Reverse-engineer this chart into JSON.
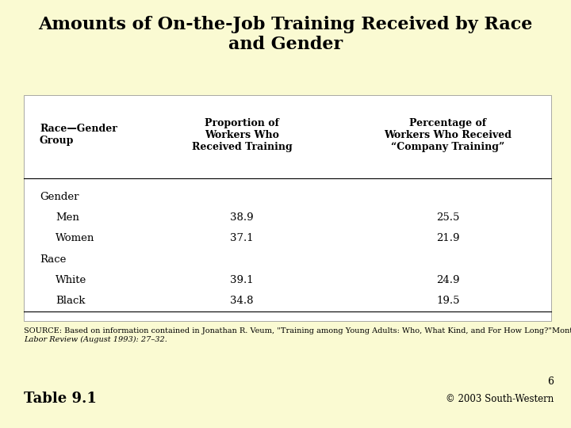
{
  "title": "Amounts of On-the-Job Training Received by Race\nand Gender",
  "background_color": "#FAFAD2",
  "table_bg": "#FFFFFF",
  "col_headers": [
    "Race—Gender\nGroup",
    "Proportion of\nWorkers Who\nReceived Training",
    "Percentage of\nWorkers Who Received\n“Company Training”"
  ],
  "rows": [
    {
      "label": "Gender",
      "indent": false,
      "col2": "",
      "col3": ""
    },
    {
      "label": "Men",
      "indent": true,
      "col2": "38.9",
      "col3": "25.5"
    },
    {
      "label": "Women",
      "indent": true,
      "col2": "37.1",
      "col3": "21.9"
    },
    {
      "label": "Race",
      "indent": false,
      "col2": "",
      "col3": ""
    },
    {
      "label": "White",
      "indent": true,
      "col2": "39.1",
      "col3": "24.9"
    },
    {
      "label": "Black",
      "indent": true,
      "col2": "34.8",
      "col3": "19.5"
    }
  ],
  "source_line1": "SOURCE: Based on information contained in Jonathan R. Veum, \"Training among Young Adults: Who, What Kind, and For How Long?\"Monthly",
  "source_line2": "Labor Review (August 1993): 27–32.",
  "table_label": "Table 9.1",
  "page_num": "6",
  "copyright": "© 2003 South-Western",
  "title_fontsize": 16,
  "header_fontsize": 9,
  "body_fontsize": 9.5,
  "source_fontsize": 7,
  "label_fontsize": 13,
  "copyright_fontsize": 8.5,
  "pagenum_fontsize": 9
}
